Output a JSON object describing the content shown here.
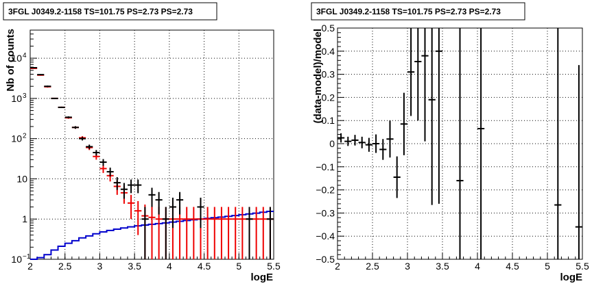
{
  "chart_data": [
    {
      "type": "scatter",
      "title": "3FGL J0349.2-1158 TS=101.75 PS=2.73 PS=2.73",
      "xlabel": "logE",
      "ylabel": "Nb of counts",
      "xlim": [
        2,
        5.5
      ],
      "ylim": [
        0.1,
        50000
      ],
      "yscale": "log",
      "grid": true,
      "x_ticks": [
        "2",
        "2.5",
        "3",
        "3.5",
        "4",
        "4.5",
        "5",
        "5.5"
      ],
      "y_ticks": [
        {
          "value": 0.1,
          "base": "10",
          "exp": "−1"
        },
        {
          "value": 1,
          "base": "1",
          "exp": ""
        },
        {
          "value": 10,
          "base": "10",
          "exp": ""
        },
        {
          "value": 100,
          "base": "10",
          "exp": "2"
        },
        {
          "value": 1000,
          "base": "10",
          "exp": "3"
        },
        {
          "value": 10000,
          "base": "10",
          "exp": "4"
        }
      ],
      "bin_width": 0.1,
      "series": [
        {
          "role": "data",
          "color": "#000000",
          "points": [
            {
              "x": 2.05,
              "y": 5800,
              "lo": 5650,
              "hi": 5950
            },
            {
              "x": 2.15,
              "y": 3900,
              "lo": 3780,
              "hi": 4020
            },
            {
              "x": 2.25,
              "y": 2000,
              "lo": 1910,
              "hi": 2090
            },
            {
              "x": 2.35,
              "y": 1000,
              "lo": 968,
              "hi": 1032
            },
            {
              "x": 2.45,
              "y": 600,
              "lo": 576,
              "hi": 624
            },
            {
              "x": 2.55,
              "y": 340,
              "lo": 322,
              "hi": 358
            },
            {
              "x": 2.65,
              "y": 190,
              "lo": 176,
              "hi": 204
            },
            {
              "x": 2.75,
              "y": 100,
              "lo": 90,
              "hi": 110
            },
            {
              "x": 2.85,
              "y": 63,
              "lo": 55,
              "hi": 71
            },
            {
              "x": 2.95,
              "y": 45,
              "lo": 38,
              "hi": 52
            },
            {
              "x": 3.05,
              "y": 26,
              "lo": 21,
              "hi": 31
            },
            {
              "x": 3.15,
              "y": 15,
              "lo": 11.5,
              "hi": 19
            },
            {
              "x": 3.25,
              "y": 8,
              "lo": 5.3,
              "hi": 11
            },
            {
              "x": 3.35,
              "y": 5.5,
              "lo": 3.2,
              "hi": 7.9
            },
            {
              "x": 3.45,
              "y": 7,
              "lo": 4.4,
              "hi": 9.6
            },
            {
              "x": 3.55,
              "y": 7,
              "lo": 4.4,
              "hi": 9.6
            },
            {
              "x": 3.65,
              "y": 1,
              "lo": 0.1,
              "hi": 2
            },
            {
              "x": 3.75,
              "y": 4,
              "lo": 2,
              "hi": 6
            },
            {
              "x": 3.85,
              "y": 3,
              "lo": 1.3,
              "hi": 4.7
            },
            {
              "x": 3.95,
              "y": 1,
              "lo": 0.1,
              "hi": 2
            },
            {
              "x": 4.05,
              "y": 2,
              "lo": 0.6,
              "hi": 3.4
            },
            {
              "x": 4.15,
              "y": 3,
              "lo": 1.3,
              "hi": 4.7
            },
            {
              "x": 4.45,
              "y": 2,
              "lo": 0.6,
              "hi": 3.4
            },
            {
              "x": 5.15,
              "y": 1,
              "lo": 0.1,
              "hi": 2
            },
            {
              "x": 5.45,
              "y": 1,
              "lo": 0.1,
              "hi": 2
            }
          ]
        },
        {
          "role": "model",
          "color": "#ee0000",
          "points": [
            {
              "x": 2.05,
              "y": 5600,
              "lo": 5450,
              "hi": 5750
            },
            {
              "x": 2.15,
              "y": 3800,
              "lo": 3680,
              "hi": 3920
            },
            {
              "x": 2.25,
              "y": 1950,
              "lo": 1860,
              "hi": 2040
            },
            {
              "x": 2.35,
              "y": 1000,
              "lo": 968,
              "hi": 1032
            },
            {
              "x": 2.45,
              "y": 600,
              "lo": 576,
              "hi": 624
            },
            {
              "x": 2.55,
              "y": 330,
              "lo": 312,
              "hi": 348
            },
            {
              "x": 2.65,
              "y": 190,
              "lo": 176,
              "hi": 204
            },
            {
              "x": 2.75,
              "y": 105,
              "lo": 95,
              "hi": 115
            },
            {
              "x": 2.85,
              "y": 60,
              "lo": 52,
              "hi": 68
            },
            {
              "x": 2.95,
              "y": 36,
              "lo": 30,
              "hi": 42
            },
            {
              "x": 3.05,
              "y": 18,
              "lo": 14,
              "hi": 22
            },
            {
              "x": 3.15,
              "y": 12,
              "lo": 8.6,
              "hi": 15.4
            },
            {
              "x": 3.25,
              "y": 6.5,
              "lo": 4,
              "hi": 9
            },
            {
              "x": 3.35,
              "y": 4.5,
              "lo": 2.4,
              "hi": 6.6
            },
            {
              "x": 3.45,
              "y": 2.5,
              "lo": 1,
              "hi": 4
            },
            {
              "x": 3.55,
              "y": 1.6,
              "lo": 0.4,
              "hi": 2.8
            },
            {
              "x": 3.65,
              "y": 1.2,
              "lo": 0.1,
              "hi": 2.3
            },
            {
              "x": 3.75,
              "y": 1.1,
              "lo": 0.1,
              "hi": 2.2
            },
            {
              "x": 3.85,
              "y": 1,
              "lo": 0.1,
              "hi": 2
            },
            {
              "x": 3.95,
              "y": 1,
              "lo": 0.1,
              "hi": 2
            },
            {
              "x": 4.05,
              "y": 1,
              "lo": 0.1,
              "hi": 2
            },
            {
              "x": 4.15,
              "y": 1,
              "lo": 0.1,
              "hi": 2
            },
            {
              "x": 4.25,
              "y": 1,
              "lo": 0.1,
              "hi": 2
            },
            {
              "x": 4.35,
              "y": 1,
              "lo": 0.1,
              "hi": 2
            },
            {
              "x": 4.45,
              "y": 1,
              "lo": 0.1,
              "hi": 2
            },
            {
              "x": 4.55,
              "y": 1,
              "lo": 0.1,
              "hi": 2
            },
            {
              "x": 4.65,
              "y": 1,
              "lo": 0.1,
              "hi": 2
            },
            {
              "x": 4.75,
              "y": 1,
              "lo": 0.1,
              "hi": 2
            },
            {
              "x": 4.85,
              "y": 1,
              "lo": 0.1,
              "hi": 2
            },
            {
              "x": 4.95,
              "y": 1,
              "lo": 0.1,
              "hi": 2
            },
            {
              "x": 5.05,
              "y": 1,
              "lo": 0.1,
              "hi": 2
            },
            {
              "x": 5.15,
              "y": 1,
              "lo": 0.1,
              "hi": 2
            },
            {
              "x": 5.25,
              "y": 1,
              "lo": 0.1,
              "hi": 2
            },
            {
              "x": 5.35,
              "y": 1,
              "lo": 0.1,
              "hi": 2
            },
            {
              "x": 5.45,
              "y": 1,
              "lo": 0.1,
              "hi": 2
            }
          ]
        },
        {
          "role": "background-step",
          "color": "#0000cc",
          "values": [
            0.1,
            0.11,
            0.13,
            0.17,
            0.21,
            0.25,
            0.29,
            0.34,
            0.38,
            0.43,
            0.48,
            0.52,
            0.56,
            0.6,
            0.64,
            0.68,
            0.71,
            0.74,
            0.77,
            0.8,
            0.84,
            0.88,
            0.92,
            0.96,
            1.0,
            1.04,
            1.08,
            1.12,
            1.17,
            1.22,
            1.28,
            1.34,
            1.4,
            1.48,
            1.55
          ]
        }
      ]
    },
    {
      "type": "scatter",
      "title": "3FGL J0349.2-1158 TS=101.75 PS=2.73 PS=2.73",
      "xlabel": "logE",
      "ylabel": "(data-model)/model",
      "xlim": [
        2,
        5.5
      ],
      "ylim": [
        -0.5,
        0.5
      ],
      "grid": true,
      "x_ticks": [
        "2",
        "2.5",
        "3",
        "3.5",
        "4",
        "4.5",
        "5",
        "5.5"
      ],
      "y_ticks": [
        "−0.5",
        "−0.4",
        "−0.3",
        "−0.2",
        "−0.1",
        "0",
        "0.1",
        "0.2",
        "0.3",
        "0.4",
        "0.5"
      ],
      "bin_width": 0.1,
      "series": [
        {
          "role": "residual",
          "color": "#000000",
          "points": [
            {
              "x": 2.05,
              "y": 0.025,
              "lo": 0.005,
              "hi": 0.045
            },
            {
              "x": 2.15,
              "y": 0.01,
              "lo": -0.01,
              "hi": 0.03
            },
            {
              "x": 2.25,
              "y": 0.015,
              "lo": -0.008,
              "hi": 0.038
            },
            {
              "x": 2.35,
              "y": 0.005,
              "lo": -0.02,
              "hi": 0.03
            },
            {
              "x": 2.45,
              "y": -0.005,
              "lo": -0.035,
              "hi": 0.025
            },
            {
              "x": 2.55,
              "y": 0.0,
              "lo": -0.04,
              "hi": 0.04
            },
            {
              "x": 2.65,
              "y": -0.025,
              "lo": -0.07,
              "hi": 0.02
            },
            {
              "x": 2.75,
              "y": 0.02,
              "lo": -0.06,
              "hi": 0.1
            },
            {
              "x": 2.85,
              "y": -0.145,
              "lo": -0.235,
              "hi": -0.055
            },
            {
              "x": 2.95,
              "y": 0.085,
              "lo": -0.05,
              "hi": 0.22
            },
            {
              "x": 3.05,
              "y": 0.31,
              "lo": 0.12,
              "hi": 0.5
            },
            {
              "x": 3.15,
              "y": 0.355,
              "lo": 0.1,
              "hi": 0.5
            },
            {
              "x": 3.25,
              "y": 0.38,
              "lo": 0.01,
              "hi": 0.5
            },
            {
              "x": 3.35,
              "y": 0.19,
              "lo": -0.265,
              "hi": 0.5
            },
            {
              "x": 3.45,
              "y": 0.4,
              "lo": -0.26,
              "hi": 0.5
            },
            {
              "x": 3.75,
              "y": -0.16,
              "lo": -0.5,
              "hi": 0.5
            },
            {
              "x": 4.05,
              "y": 0.065,
              "lo": -0.5,
              "hi": 0.5
            },
            {
              "x": 5.15,
              "y": -0.265,
              "lo": -0.5,
              "hi": 0.5
            },
            {
              "x": 5.45,
              "y": -0.36,
              "lo": -0.5,
              "hi": 0.34
            }
          ]
        }
      ]
    }
  ]
}
